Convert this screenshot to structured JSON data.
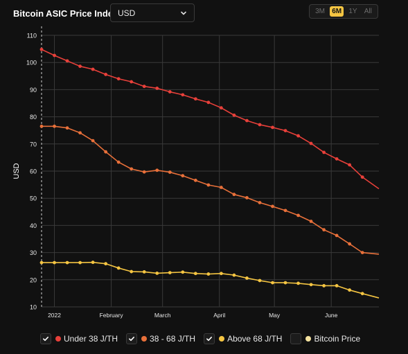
{
  "header": {
    "title": "Bitcoin ASIC Price Index",
    "currency": "USD",
    "ranges": [
      "3M",
      "6M",
      "1Y",
      "All"
    ],
    "active_range": "6M"
  },
  "colors": {
    "under_38": "#e8403a",
    "between_38_68": "#e8703a",
    "above_68": "#f5c542",
    "bitcoin_price": "#f5e3a0",
    "grid": "#3a3a3a"
  },
  "legend": {
    "items": [
      {
        "label": "Under 38 J/TH",
        "checked": true,
        "color": "#e8403a"
      },
      {
        "label": "38 - 68 J/TH",
        "checked": true,
        "color": "#e8703a"
      },
      {
        "label": "Above 68 J/TH",
        "checked": true,
        "color": "#f5c542"
      },
      {
        "label": "Bitcoin Price",
        "checked": false,
        "color": "#f5e3a0"
      }
    ]
  },
  "chart_data": {
    "type": "line",
    "ylabel": "USD",
    "ylim": [
      10,
      110
    ],
    "yticks": [
      10,
      20,
      30,
      40,
      50,
      60,
      70,
      80,
      90,
      100,
      110
    ],
    "xlim": [
      "2021-12-25",
      "2022-06-27"
    ],
    "xticks": [
      {
        "label": "2022",
        "date": "2022-01-01"
      },
      {
        "label": "February",
        "date": "2022-02-01"
      },
      {
        "label": "March",
        "date": "2022-03-01"
      },
      {
        "label": "April",
        "date": "2022-04-01"
      },
      {
        "label": "May",
        "date": "2022-05-01"
      },
      {
        "label": "June",
        "date": "2022-06-01"
      }
    ],
    "grid": true,
    "series": [
      {
        "name": "Under 38 J/TH",
        "color": "#e8403a",
        "points": [
          [
            "2021-12-25",
            104.8
          ],
          [
            "2022-01-01",
            102.6
          ],
          [
            "2022-01-08",
            100.6
          ],
          [
            "2022-01-15",
            98.6
          ],
          [
            "2022-01-22",
            97.5
          ],
          [
            "2022-01-29",
            95.6
          ],
          [
            "2022-02-05",
            94.0
          ],
          [
            "2022-02-12",
            92.9
          ],
          [
            "2022-02-19",
            91.2
          ],
          [
            "2022-02-26",
            90.5
          ],
          [
            "2022-03-05",
            89.2
          ],
          [
            "2022-03-12",
            88.1
          ],
          [
            "2022-03-19",
            86.6
          ],
          [
            "2022-03-26",
            85.3
          ],
          [
            "2022-04-02",
            83.3
          ],
          [
            "2022-04-09",
            80.6
          ],
          [
            "2022-04-16",
            78.6
          ],
          [
            "2022-04-23",
            77.1
          ],
          [
            "2022-04-30",
            76.1
          ],
          [
            "2022-05-07",
            74.9
          ],
          [
            "2022-05-14",
            73.0
          ],
          [
            "2022-05-21",
            70.2
          ],
          [
            "2022-05-28",
            66.9
          ],
          [
            "2022-06-04",
            64.5
          ],
          [
            "2022-06-11",
            62.3
          ],
          [
            "2022-06-18",
            57.8
          ],
          [
            "2022-06-27",
            53.5
          ]
        ]
      },
      {
        "name": "38 - 68 J/TH",
        "color": "#e8703a",
        "points": [
          [
            "2021-12-25",
            76.5
          ],
          [
            "2022-01-01",
            76.5
          ],
          [
            "2022-01-08",
            75.9
          ],
          [
            "2022-01-15",
            74.1
          ],
          [
            "2022-01-22",
            71.2
          ],
          [
            "2022-01-29",
            67.1
          ],
          [
            "2022-02-05",
            63.3
          ],
          [
            "2022-02-12",
            60.8
          ],
          [
            "2022-02-19",
            59.7
          ],
          [
            "2022-02-26",
            60.3
          ],
          [
            "2022-03-05",
            59.6
          ],
          [
            "2022-03-12",
            58.3
          ],
          [
            "2022-03-19",
            56.6
          ],
          [
            "2022-03-26",
            54.9
          ],
          [
            "2022-04-02",
            54.0
          ],
          [
            "2022-04-09",
            51.4
          ],
          [
            "2022-04-16",
            50.2
          ],
          [
            "2022-04-23",
            48.4
          ],
          [
            "2022-04-30",
            47.0
          ],
          [
            "2022-05-07",
            45.5
          ],
          [
            "2022-05-14",
            43.7
          ],
          [
            "2022-05-21",
            41.5
          ],
          [
            "2022-05-28",
            38.4
          ],
          [
            "2022-06-04",
            36.3
          ],
          [
            "2022-06-11",
            33.2
          ],
          [
            "2022-06-18",
            30.0
          ],
          [
            "2022-06-27",
            29.4
          ]
        ]
      },
      {
        "name": "Above 68 J/TH",
        "color": "#f5c542",
        "points": [
          [
            "2021-12-25",
            26.3
          ],
          [
            "2022-01-01",
            26.3
          ],
          [
            "2022-01-08",
            26.3
          ],
          [
            "2022-01-15",
            26.3
          ],
          [
            "2022-01-22",
            26.4
          ],
          [
            "2022-01-29",
            25.9
          ],
          [
            "2022-02-05",
            24.3
          ],
          [
            "2022-02-12",
            23.0
          ],
          [
            "2022-02-19",
            22.9
          ],
          [
            "2022-02-26",
            22.4
          ],
          [
            "2022-03-05",
            22.6
          ],
          [
            "2022-03-12",
            22.8
          ],
          [
            "2022-03-19",
            22.3
          ],
          [
            "2022-03-26",
            22.1
          ],
          [
            "2022-04-02",
            22.3
          ],
          [
            "2022-04-09",
            21.7
          ],
          [
            "2022-04-16",
            20.6
          ],
          [
            "2022-04-23",
            19.7
          ],
          [
            "2022-04-30",
            18.9
          ],
          [
            "2022-05-07",
            18.9
          ],
          [
            "2022-05-14",
            18.7
          ],
          [
            "2022-05-21",
            18.2
          ],
          [
            "2022-05-28",
            17.8
          ],
          [
            "2022-06-04",
            17.8
          ],
          [
            "2022-06-11",
            16.2
          ],
          [
            "2022-06-18",
            14.9
          ],
          [
            "2022-06-27",
            13.3
          ]
        ]
      }
    ]
  }
}
